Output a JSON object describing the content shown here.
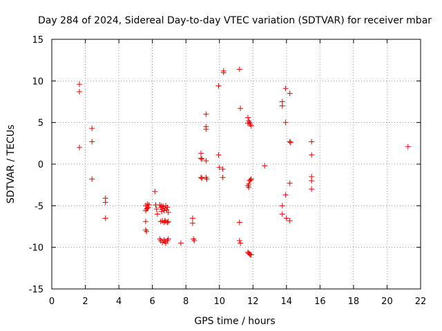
{
  "chart_data": {
    "type": "scatter",
    "title": "Day 284 of 2024, Sidereal Day-to-day VTEC variation (SDTVAR) for receiver mbar",
    "xlabel": "GPS time / hours",
    "ylabel": "SDTVAR / TECUs",
    "xlim": [
      0,
      22
    ],
    "ylim": [
      -15,
      15
    ],
    "xticks": [
      "0",
      "2",
      "4",
      "6",
      "8",
      "10",
      "12",
      "14",
      "16",
      "18",
      "20",
      "22"
    ],
    "yticks": [
      "15",
      "10",
      "5",
      "0",
      "-5",
      "-10",
      "-15"
    ],
    "grid": true,
    "marker": "+",
    "color": "#ee0000",
    "series": [
      {
        "name": "SDTVAR",
        "points": [
          [
            1.65,
            9.6
          ],
          [
            1.65,
            8.7
          ],
          [
            1.65,
            2.0
          ],
          [
            2.4,
            4.3
          ],
          [
            2.4,
            2.7
          ],
          [
            2.4,
            -1.8
          ],
          [
            3.2,
            -4.1
          ],
          [
            3.2,
            -4.6
          ],
          [
            3.2,
            -6.5
          ],
          [
            5.6,
            -5.0
          ],
          [
            5.65,
            -5.4
          ],
          [
            5.7,
            -4.8
          ],
          [
            5.75,
            -5.2
          ],
          [
            5.8,
            -4.9
          ],
          [
            5.6,
            -5.6
          ],
          [
            5.7,
            -5.3
          ],
          [
            5.6,
            -6.9
          ],
          [
            5.6,
            -7.9
          ],
          [
            5.65,
            -8.1
          ],
          [
            6.15,
            -3.3
          ],
          [
            6.2,
            -4.9
          ],
          [
            6.25,
            -5.4
          ],
          [
            6.3,
            -6.0
          ],
          [
            6.45,
            -4.9
          ],
          [
            6.5,
            -5.2
          ],
          [
            6.55,
            -5.0
          ],
          [
            6.6,
            -5.4
          ],
          [
            6.65,
            -5.1
          ],
          [
            6.7,
            -5.6
          ],
          [
            6.75,
            -5.3
          ],
          [
            6.8,
            -5.0
          ],
          [
            6.85,
            -5.5
          ],
          [
            6.9,
            -5.2
          ],
          [
            6.95,
            -5.8
          ],
          [
            6.55,
            -5.7
          ],
          [
            6.5,
            -6.9
          ],
          [
            6.6,
            -6.8
          ],
          [
            6.7,
            -7.0
          ],
          [
            6.8,
            -6.9
          ],
          [
            6.9,
            -7.0
          ],
          [
            6.75,
            -6.8
          ],
          [
            6.95,
            -6.9
          ],
          [
            6.45,
            -9.0
          ],
          [
            6.5,
            -9.2
          ],
          [
            6.6,
            -9.4
          ],
          [
            6.7,
            -9.1
          ],
          [
            6.75,
            -9.3
          ],
          [
            6.8,
            -9.5
          ],
          [
            6.9,
            -9.2
          ],
          [
            6.95,
            -9.0
          ],
          [
            7.7,
            -9.5
          ],
          [
            8.4,
            -6.5
          ],
          [
            8.4,
            -7.1
          ],
          [
            8.45,
            -9.0
          ],
          [
            8.5,
            -9.2
          ],
          [
            8.9,
            1.3
          ],
          [
            8.9,
            0.7
          ],
          [
            8.95,
            0.6
          ],
          [
            8.9,
            -1.6
          ],
          [
            8.95,
            -1.7
          ],
          [
            9.2,
            6.0
          ],
          [
            9.2,
            4.5
          ],
          [
            9.2,
            4.2
          ],
          [
            9.2,
            0.4
          ],
          [
            9.2,
            -1.6
          ],
          [
            9.25,
            -1.8
          ],
          [
            9.95,
            9.4
          ],
          [
            9.95,
            1.1
          ],
          [
            10.0,
            -0.4
          ],
          [
            10.2,
            -0.6
          ],
          [
            10.2,
            -1.6
          ],
          [
            10.25,
            11.0
          ],
          [
            10.25,
            11.2
          ],
          [
            11.2,
            11.4
          ],
          [
            11.25,
            6.7
          ],
          [
            11.2,
            -7.0
          ],
          [
            11.2,
            -9.2
          ],
          [
            11.25,
            -9.5
          ],
          [
            11.7,
            5.6
          ],
          [
            11.75,
            5.2
          ],
          [
            11.8,
            5.0
          ],
          [
            11.85,
            4.8
          ],
          [
            11.9,
            4.6
          ],
          [
            11.7,
            4.9
          ],
          [
            11.7,
            -2.6
          ],
          [
            11.75,
            -2.4
          ],
          [
            11.8,
            -2.0
          ],
          [
            11.85,
            -1.9
          ],
          [
            11.9,
            -1.8
          ],
          [
            11.75,
            -2.8
          ],
          [
            11.7,
            -10.6
          ],
          [
            11.75,
            -10.7
          ],
          [
            11.8,
            -10.8
          ],
          [
            11.85,
            -10.9
          ],
          [
            11.9,
            -10.9
          ],
          [
            12.7,
            -0.2
          ],
          [
            13.75,
            7.5
          ],
          [
            13.75,
            7.0
          ],
          [
            13.75,
            -5.0
          ],
          [
            13.75,
            -6.0
          ],
          [
            13.95,
            9.1
          ],
          [
            13.95,
            5.0
          ],
          [
            13.95,
            -3.7
          ],
          [
            14.0,
            -6.5
          ],
          [
            14.2,
            8.5
          ],
          [
            14.2,
            2.7
          ],
          [
            14.25,
            2.6
          ],
          [
            14.2,
            -2.3
          ],
          [
            14.2,
            -6.8
          ],
          [
            15.5,
            2.7
          ],
          [
            15.5,
            1.1
          ],
          [
            15.5,
            -1.5
          ],
          [
            15.5,
            -2.0
          ],
          [
            15.5,
            -3.0
          ],
          [
            21.25,
            2.1
          ]
        ]
      }
    ]
  }
}
